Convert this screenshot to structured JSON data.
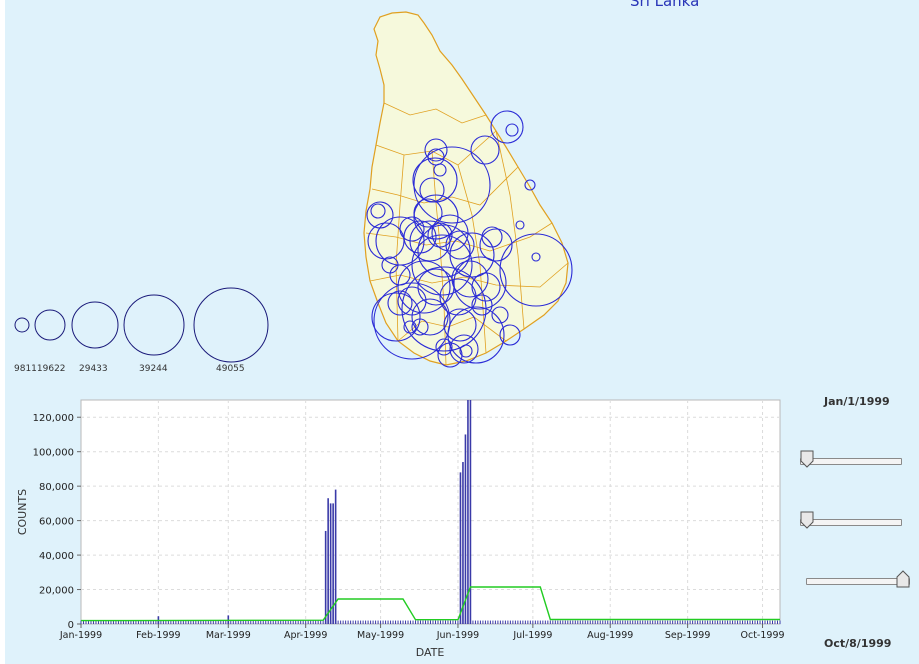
{
  "map": {
    "title": "Sri Lanka",
    "land_color": "#f6f9dc",
    "border_color": "#e0a020",
    "bubble_color": "#2b2bd6"
  },
  "legend": {
    "labels": [
      "981119622",
      "29433",
      "39244",
      "49055"
    ],
    "first_label_partial": "981119622"
  },
  "chart_data": {
    "type": "bar",
    "xlabel": "DATE",
    "ylabel": "COUNTS",
    "x_range": [
      "1999-01-01",
      "1999-10-08"
    ],
    "ylim": [
      0,
      130000
    ],
    "yticks": [
      0,
      20000,
      40000,
      60000,
      80000,
      100000,
      120000
    ],
    "ytick_labels": [
      "0",
      "20,000",
      "40,000",
      "60,000",
      "80,000",
      "100,000",
      "120,000"
    ],
    "xtick_labels": [
      "Jan-1999",
      "Feb-1999",
      "Mar-1999",
      "Apr-1999",
      "May-1999",
      "Jun-1999",
      "Jul-1999",
      "Aug-1999",
      "Sep-1999",
      "Oct-1999"
    ],
    "xtick_dates": [
      "1999-01-01",
      "1999-02-01",
      "1999-03-01",
      "1999-04-01",
      "1999-05-01",
      "1999-06-01",
      "1999-07-01",
      "1999-08-01",
      "1999-09-01",
      "1999-10-01"
    ],
    "grid": true,
    "bar_color": "#3a3aa8",
    "line_color": "#22cc22",
    "baseline_bar": 2000,
    "bars": [
      {
        "date": "1999-02-01",
        "value": 4500
      },
      {
        "date": "1999-03-01",
        "value": 5000
      },
      {
        "date": "1999-04-09",
        "value": 54000
      },
      {
        "date": "1999-04-10",
        "value": 73000
      },
      {
        "date": "1999-04-11",
        "value": 70000
      },
      {
        "date": "1999-04-12",
        "value": 70000
      },
      {
        "date": "1999-04-13",
        "value": 78000
      },
      {
        "date": "1999-06-02",
        "value": 88000
      },
      {
        "date": "1999-06-03",
        "value": 94000
      },
      {
        "date": "1999-06-04",
        "value": 110000
      },
      {
        "date": "1999-06-05",
        "value": 130000
      },
      {
        "date": "1999-06-06",
        "value": 130000
      }
    ],
    "line": [
      {
        "date": "1999-01-01",
        "value": 2000
      },
      {
        "date": "1999-04-08",
        "value": 2200
      },
      {
        "date": "1999-04-14",
        "value": 14500
      },
      {
        "date": "1999-05-10",
        "value": 14500
      },
      {
        "date": "1999-05-15",
        "value": 2500
      },
      {
        "date": "1999-06-01",
        "value": 2500
      },
      {
        "date": "1999-06-06",
        "value": 21500
      },
      {
        "date": "1999-07-04",
        "value": 21500
      },
      {
        "date": "1999-07-08",
        "value": 2600
      },
      {
        "date": "1999-10-08",
        "value": 2600
      }
    ]
  },
  "controls": {
    "start_date": "Jan/1/1999",
    "end_date": "Oct/8/1999",
    "slider_1_value": 0.0,
    "slider_2_value": 0.0,
    "slider_3_value": 1.0
  }
}
